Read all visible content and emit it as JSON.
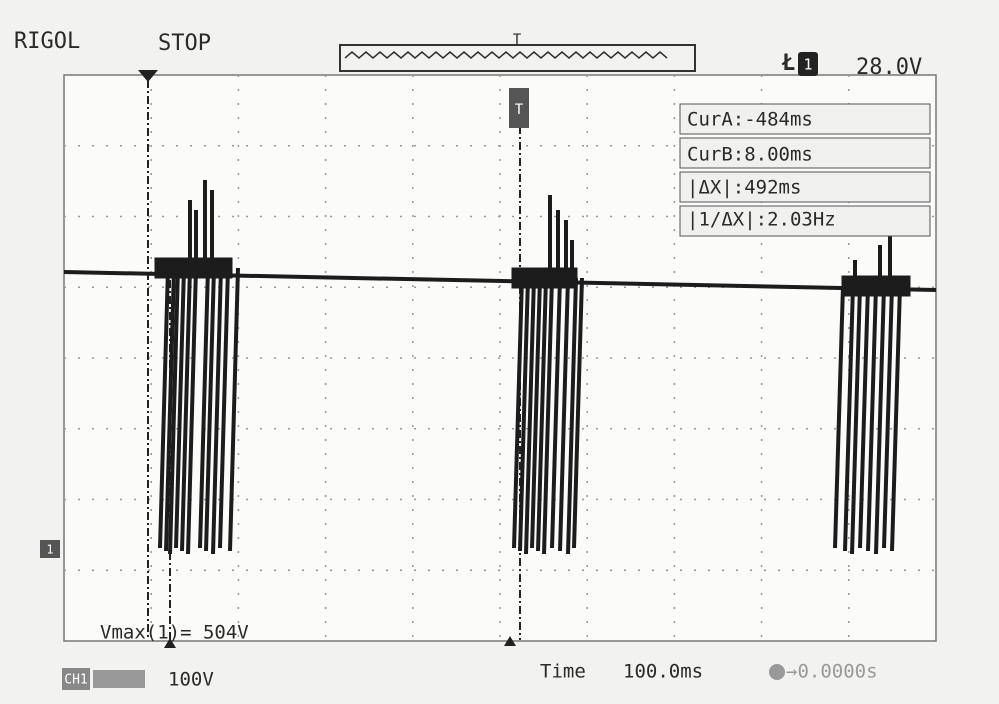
{
  "header": {
    "brand": "RIGOL",
    "status": "STOP",
    "trigger_marker": "T",
    "channel": "1",
    "trigger_level": "28.0V"
  },
  "cursors": {
    "cur_a": "CurA:-484ms",
    "cur_b": "CurB:8.00ms",
    "delta_x": "|ΔX|:492ms",
    "inverse_delta_x": "|1/ΔX|:2.03Hz"
  },
  "measurement": "Vmax(1)= 504V",
  "channel_marker": "1",
  "footer": {
    "channel": "CH1",
    "volts_per_div": "100V",
    "time_label": "Time",
    "time_per_div": "100.0ms",
    "trigger_offset": "→0.0000s"
  }
}
